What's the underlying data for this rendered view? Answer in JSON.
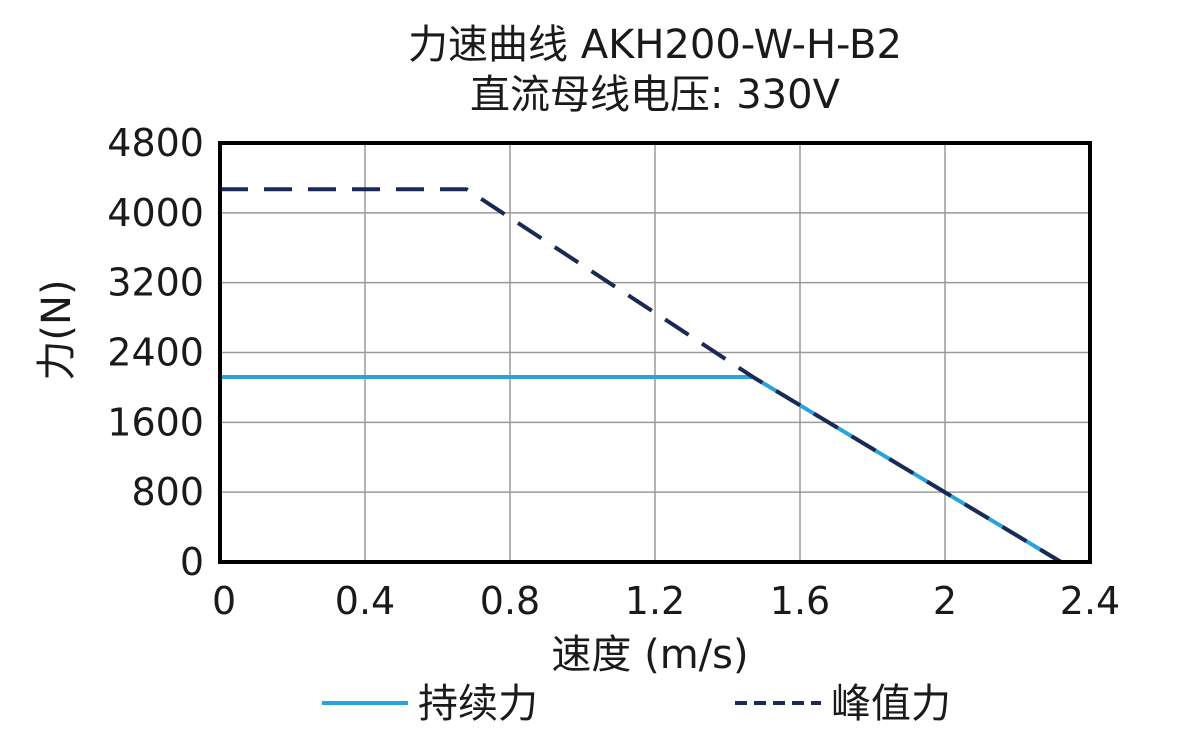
{
  "chart_data": {
    "type": "line",
    "title": "力速曲线 AKH200-W-H-B2",
    "subtitle": "直流母线电压: 330V",
    "xlabel": "速度 (m/s)",
    "ylabel": "力(N)",
    "xlim": [
      0,
      2.4
    ],
    "ylim": [
      0,
      4800
    ],
    "x_ticks": [
      "0",
      "0.4",
      "0.8",
      "1.2",
      "1.6",
      "2",
      "2.4"
    ],
    "y_ticks": [
      "0",
      "800",
      "1600",
      "2400",
      "3200",
      "4000",
      "4800"
    ],
    "grid": true,
    "legend_position": "bottom",
    "series": [
      {
        "name": "持续力",
        "color": "#29a3dc",
        "dash": "solid",
        "x": [
          0,
          1.47,
          2.32
        ],
        "y": [
          2120,
          2120,
          0
        ]
      },
      {
        "name": "峰值力",
        "color": "#1b2a55",
        "dash": "dashed",
        "x": [
          0,
          0.68,
          1.47,
          2.32
        ],
        "y": [
          4270,
          4270,
          2120,
          0
        ]
      }
    ]
  }
}
